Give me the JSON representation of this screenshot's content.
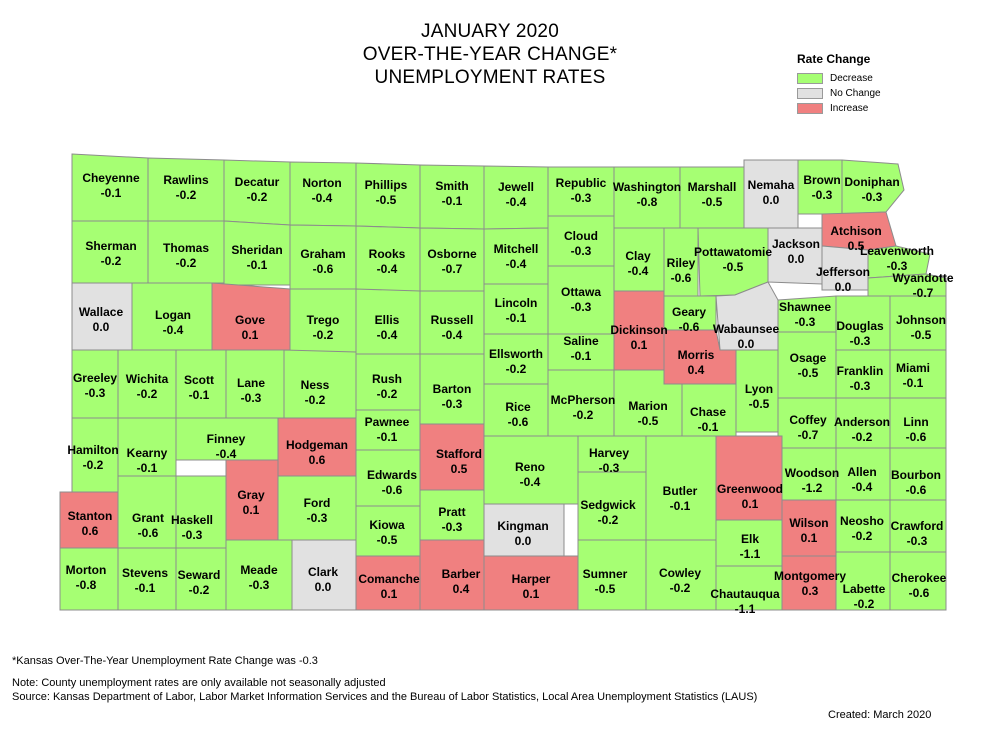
{
  "title": {
    "line1": "JANUARY 2020",
    "line2": "OVER-THE-YEAR CHANGE*",
    "line3": "UNEMPLOYMENT RATES"
  },
  "legend": {
    "title": "Rate Change",
    "items": [
      {
        "label": "Decrease",
        "color": "#a6ff73"
      },
      {
        "label": "No Change",
        "color": "#e1e1e1"
      },
      {
        "label": "Increase",
        "color": "#f08080"
      }
    ]
  },
  "colors": {
    "decrease": "#a6ff73",
    "nochange": "#e1e1e1",
    "increase": "#f08080",
    "border": "#8c8c8c"
  },
  "counties": [
    {
      "name": "Cheyenne",
      "value": "-0.1",
      "cat": "decrease"
    },
    {
      "name": "Rawlins",
      "value": "-0.2",
      "cat": "decrease"
    },
    {
      "name": "Decatur",
      "value": "-0.2",
      "cat": "decrease"
    },
    {
      "name": "Norton",
      "value": "-0.4",
      "cat": "decrease"
    },
    {
      "name": "Phillips",
      "value": "-0.5",
      "cat": "decrease"
    },
    {
      "name": "Smith",
      "value": "-0.1",
      "cat": "decrease"
    },
    {
      "name": "Jewell",
      "value": "-0.4",
      "cat": "decrease"
    },
    {
      "name": "Republic",
      "value": "-0.3",
      "cat": "decrease"
    },
    {
      "name": "Washington",
      "value": "-0.8",
      "cat": "decrease"
    },
    {
      "name": "Marshall",
      "value": "-0.5",
      "cat": "decrease"
    },
    {
      "name": "Nemaha",
      "value": "0.0",
      "cat": "nochange"
    },
    {
      "name": "Brown",
      "value": "-0.3",
      "cat": "decrease"
    },
    {
      "name": "Doniphan",
      "value": "-0.3",
      "cat": "decrease"
    },
    {
      "name": "Sherman",
      "value": "-0.2",
      "cat": "decrease"
    },
    {
      "name": "Thomas",
      "value": "-0.2",
      "cat": "decrease"
    },
    {
      "name": "Sheridan",
      "value": "-0.1",
      "cat": "decrease"
    },
    {
      "name": "Graham",
      "value": "-0.6",
      "cat": "decrease"
    },
    {
      "name": "Rooks",
      "value": "-0.4",
      "cat": "decrease"
    },
    {
      "name": "Osborne",
      "value": "-0.7",
      "cat": "decrease"
    },
    {
      "name": "Mitchell",
      "value": "-0.4",
      "cat": "decrease"
    },
    {
      "name": "Cloud",
      "value": "-0.3",
      "cat": "decrease"
    },
    {
      "name": "Clay",
      "value": "-0.4",
      "cat": "decrease"
    },
    {
      "name": "Riley",
      "value": "-0.6",
      "cat": "decrease"
    },
    {
      "name": "Pottawatomie",
      "value": "-0.5",
      "cat": "decrease"
    },
    {
      "name": "Jackson",
      "value": "0.0",
      "cat": "nochange"
    },
    {
      "name": "Atchison",
      "value": "0.5",
      "cat": "increase"
    },
    {
      "name": "Jefferson",
      "value": "0.0",
      "cat": "nochange"
    },
    {
      "name": "Leavenworth",
      "value": "-0.3",
      "cat": "decrease"
    },
    {
      "name": "Wyandotte",
      "value": "-0.7",
      "cat": "decrease"
    },
    {
      "name": "Wallace",
      "value": "0.0",
      "cat": "nochange"
    },
    {
      "name": "Logan",
      "value": "-0.4",
      "cat": "decrease"
    },
    {
      "name": "Gove",
      "value": "0.1",
      "cat": "increase"
    },
    {
      "name": "Trego",
      "value": "-0.2",
      "cat": "decrease"
    },
    {
      "name": "Ellis",
      "value": "-0.4",
      "cat": "decrease"
    },
    {
      "name": "Russell",
      "value": "-0.4",
      "cat": "decrease"
    },
    {
      "name": "Lincoln",
      "value": "-0.1",
      "cat": "decrease"
    },
    {
      "name": "Ottawa",
      "value": "-0.3",
      "cat": "decrease"
    },
    {
      "name": "Dickinson",
      "value": "0.1",
      "cat": "increase"
    },
    {
      "name": "Geary",
      "value": "-0.6",
      "cat": "decrease"
    },
    {
      "name": "Wabaunsee",
      "value": "0.0",
      "cat": "nochange"
    },
    {
      "name": "Shawnee",
      "value": "-0.3",
      "cat": "decrease"
    },
    {
      "name": "Douglas",
      "value": "-0.3",
      "cat": "decrease"
    },
    {
      "name": "Johnson",
      "value": "-0.5",
      "cat": "decrease"
    },
    {
      "name": "Ellsworth",
      "value": "-0.2",
      "cat": "decrease"
    },
    {
      "name": "Saline",
      "value": "-0.1",
      "cat": "decrease"
    },
    {
      "name": "Morris",
      "value": "0.4",
      "cat": "increase"
    },
    {
      "name": "Greeley",
      "value": "-0.3",
      "cat": "decrease"
    },
    {
      "name": "Wichita",
      "value": "-0.2",
      "cat": "decrease"
    },
    {
      "name": "Scott",
      "value": "-0.1",
      "cat": "decrease"
    },
    {
      "name": "Lane",
      "value": "-0.3",
      "cat": "decrease"
    },
    {
      "name": "Ness",
      "value": "-0.2",
      "cat": "decrease"
    },
    {
      "name": "Rush",
      "value": "-0.2",
      "cat": "decrease"
    },
    {
      "name": "Barton",
      "value": "-0.3",
      "cat": "decrease"
    },
    {
      "name": "Rice",
      "value": "-0.6",
      "cat": "decrease"
    },
    {
      "name": "McPherson",
      "value": "-0.2",
      "cat": "decrease"
    },
    {
      "name": "Marion",
      "value": "-0.5",
      "cat": "decrease"
    },
    {
      "name": "Chase",
      "value": "-0.1",
      "cat": "decrease"
    },
    {
      "name": "Lyon",
      "value": "-0.5",
      "cat": "decrease"
    },
    {
      "name": "Osage",
      "value": "-0.5",
      "cat": "decrease"
    },
    {
      "name": "Franklin",
      "value": "-0.3",
      "cat": "decrease"
    },
    {
      "name": "Miami",
      "value": "-0.1",
      "cat": "decrease"
    },
    {
      "name": "Hamilton",
      "value": "-0.2",
      "cat": "decrease"
    },
    {
      "name": "Kearny",
      "value": "-0.1",
      "cat": "decrease"
    },
    {
      "name": "Finney",
      "value": "-0.4",
      "cat": "decrease"
    },
    {
      "name": "Hodgeman",
      "value": "0.6",
      "cat": "increase"
    },
    {
      "name": "Pawnee",
      "value": "-0.1",
      "cat": "decrease"
    },
    {
      "name": "Stafford",
      "value": "0.5",
      "cat": "increase"
    },
    {
      "name": "Reno",
      "value": "-0.4",
      "cat": "decrease"
    },
    {
      "name": "Harvey",
      "value": "-0.3",
      "cat": "decrease"
    },
    {
      "name": "Coffey",
      "value": "-0.7",
      "cat": "decrease"
    },
    {
      "name": "Anderson",
      "value": "-0.2",
      "cat": "decrease"
    },
    {
      "name": "Linn",
      "value": "-0.6",
      "cat": "decrease"
    },
    {
      "name": "Stanton",
      "value": "0.6",
      "cat": "increase"
    },
    {
      "name": "Grant",
      "value": "-0.6",
      "cat": "decrease"
    },
    {
      "name": "Haskell",
      "value": "-0.3",
      "cat": "decrease"
    },
    {
      "name": "Gray",
      "value": "0.1",
      "cat": "increase"
    },
    {
      "name": "Ford",
      "value": "-0.3",
      "cat": "decrease"
    },
    {
      "name": "Edwards",
      "value": "-0.6",
      "cat": "decrease"
    },
    {
      "name": "Kiowa",
      "value": "-0.5",
      "cat": "decrease"
    },
    {
      "name": "Pratt",
      "value": "-0.3",
      "cat": "decrease"
    },
    {
      "name": "Kingman",
      "value": "0.0",
      "cat": "nochange"
    },
    {
      "name": "Sedgwick",
      "value": "-0.2",
      "cat": "decrease"
    },
    {
      "name": "Butler",
      "value": "-0.1",
      "cat": "decrease"
    },
    {
      "name": "Greenwood",
      "value": "0.1",
      "cat": "increase"
    },
    {
      "name": "Woodson",
      "value": "-1.2",
      "cat": "decrease"
    },
    {
      "name": "Allen",
      "value": "-0.4",
      "cat": "decrease"
    },
    {
      "name": "Bourbon",
      "value": "-0.6",
      "cat": "decrease"
    },
    {
      "name": "Wilson",
      "value": "0.1",
      "cat": "increase"
    },
    {
      "name": "Neosho",
      "value": "-0.2",
      "cat": "decrease"
    },
    {
      "name": "Crawford",
      "value": "-0.3",
      "cat": "decrease"
    },
    {
      "name": "Elk",
      "value": "-1.1",
      "cat": "decrease"
    },
    {
      "name": "Morton",
      "value": "-0.8",
      "cat": "decrease"
    },
    {
      "name": "Stevens",
      "value": "-0.1",
      "cat": "decrease"
    },
    {
      "name": "Seward",
      "value": "-0.2",
      "cat": "decrease"
    },
    {
      "name": "Meade",
      "value": "-0.3",
      "cat": "decrease"
    },
    {
      "name": "Clark",
      "value": "0.0",
      "cat": "nochange"
    },
    {
      "name": "Comanche",
      "value": "0.1",
      "cat": "increase"
    },
    {
      "name": "Barber",
      "value": "0.4",
      "cat": "increase"
    },
    {
      "name": "Harper",
      "value": "0.1",
      "cat": "increase"
    },
    {
      "name": "Sumner",
      "value": "-0.5",
      "cat": "decrease"
    },
    {
      "name": "Cowley",
      "value": "-0.2",
      "cat": "decrease"
    },
    {
      "name": "Chautauqua",
      "value": "-1.1",
      "cat": "decrease"
    },
    {
      "name": "Montgomery",
      "value": "0.3",
      "cat": "increase"
    },
    {
      "name": "Labette",
      "value": "-0.2",
      "cat": "decrease"
    },
    {
      "name": "Cherokee",
      "value": "-0.6",
      "cat": "decrease"
    }
  ],
  "footnotes": {
    "state_note": "*Kansas Over-The-Year Unemployment Rate Change was -0.3",
    "note": "Note: County unemployment rates are only available not seasonally adjusted",
    "source": "Source: Kansas Department of Labor, Labor Market Information Services and the Bureau of Labor Statistics, Local Area Unemployment Statistics (LAUS)",
    "created": "Created:  March 2020"
  }
}
